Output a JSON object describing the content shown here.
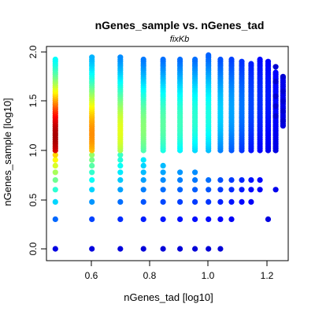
{
  "chart_data": {
    "type": "scatter",
    "title": "nGenes_sample vs. nGenes_tad",
    "subtitle": "fixKb",
    "xlabel": "nGenes_tad [log10]",
    "ylabel": "nGenes_sample [log10]",
    "xlim": [
      0.46,
      1.27
    ],
    "ylim": [
      -0.05,
      2.0
    ],
    "x_ticks": [
      "0.6",
      "0.8",
      "1.0",
      "1.2"
    ],
    "y_ticks": [
      "0.0",
      "0.5",
      "1.0",
      "1.5",
      "2.0"
    ],
    "grid": false,
    "legend": "none",
    "marker_color_scale": "density (jet: blue low, red high)",
    "colors": {
      "low_density": "#00008b",
      "mid_density": "#00ffff",
      "high_density": "#ff0000"
    },
    "columns": [
      {
        "x": 0.477,
        "y_min": 0.0,
        "y_max": 1.93,
        "discrete_y": [
          0.0,
          0.301,
          0.477,
          0.602,
          0.699,
          0.778,
          0.845,
          0.903,
          0.954
        ],
        "peak_density": 1.0
      },
      {
        "x": 0.602,
        "y_min": 0.0,
        "y_max": 1.96,
        "discrete_y": [
          0.0,
          0.301,
          0.477,
          0.602,
          0.699,
          0.778,
          0.845,
          0.903,
          0.954
        ],
        "peak_density": 0.75
      },
      {
        "x": 0.699,
        "y_min": 0.0,
        "y_max": 1.95,
        "discrete_y": [
          0.0,
          0.301,
          0.477,
          0.602,
          0.699,
          0.778,
          0.845,
          0.903,
          0.954
        ],
        "peak_density": 0.6
      },
      {
        "x": 0.778,
        "y_min": 0.0,
        "y_max": 1.94,
        "discrete_y": [
          0.0,
          0.301,
          0.477,
          0.602,
          0.699,
          0.778,
          0.845,
          0.903
        ],
        "peak_density": 0.5
      },
      {
        "x": 0.845,
        "y_min": 0.0,
        "y_max": 1.93,
        "discrete_y": [
          0.0,
          0.301,
          0.477,
          0.602,
          0.699,
          0.778,
          0.845
        ],
        "peak_density": 0.45
      },
      {
        "x": 0.903,
        "y_min": 0.0,
        "y_max": 1.93,
        "discrete_y": [
          0.0,
          0.301,
          0.477,
          0.602,
          0.699,
          0.778
        ],
        "peak_density": 0.42
      },
      {
        "x": 0.954,
        "y_min": 0.0,
        "y_max": 1.93,
        "discrete_y": [
          0.0,
          0.301,
          0.477,
          0.602,
          0.699,
          0.778
        ],
        "peak_density": 0.4
      },
      {
        "x": 1.0,
        "y_min": 0.0,
        "y_max": 1.97,
        "discrete_y": [
          0.0,
          0.301,
          0.477,
          0.602,
          0.699
        ],
        "peak_density": 0.38
      },
      {
        "x": 1.041,
        "y_min": 0.0,
        "y_max": 1.94,
        "discrete_y": [
          0.0,
          0.301,
          0.477,
          0.602,
          0.699
        ],
        "peak_density": 0.3
      },
      {
        "x": 1.079,
        "y_min": 0.301,
        "y_max": 1.93,
        "discrete_y": [
          0.301,
          0.477,
          0.602,
          0.699
        ],
        "peak_density": 0.25
      },
      {
        "x": 1.114,
        "y_min": 0.477,
        "y_max": 1.92,
        "discrete_y": [
          0.477,
          0.602,
          0.699
        ],
        "peak_density": 0.2
      },
      {
        "x": 1.146,
        "y_min": 0.477,
        "y_max": 1.9,
        "discrete_y": [
          0.477,
          0.602,
          0.699
        ],
        "peak_density": 0.15
      },
      {
        "x": 1.176,
        "y_min": 0.602,
        "y_max": 1.93,
        "discrete_y": [
          0.602,
          0.699
        ],
        "peak_density": 0.12
      },
      {
        "x": 1.204,
        "y_min": 0.301,
        "y_max": 1.92,
        "discrete_y": [
          0.301
        ],
        "peak_density": 0.1
      },
      {
        "x": 1.23,
        "y_min": 0.602,
        "y_max": 1.8,
        "discrete_y": [
          0.602
        ],
        "peak_density": 0.08
      },
      {
        "x": 1.255,
        "y_min": 1.25,
        "y_max": 1.75,
        "discrete_y": [],
        "peak_density": 0.05
      }
    ]
  }
}
